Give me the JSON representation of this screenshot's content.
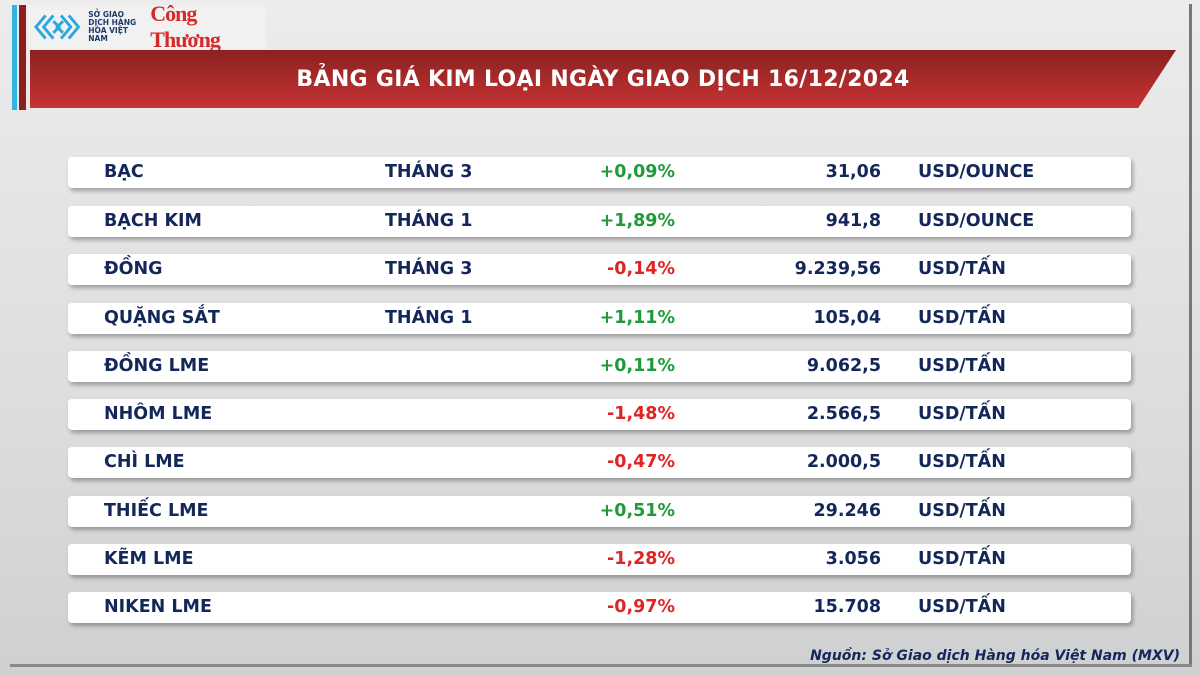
{
  "logo": {
    "org_text": "SỞ GIAO DỊCH HÀNG HÓA VIỆT NAM",
    "brand": "Công Thương"
  },
  "title": "BẢNG GIÁ KIM LOẠI NGÀY GIAO DỊCH 16/12/2024",
  "colors": {
    "up": "#1f9a3a",
    "down": "#e02323",
    "banner": "#c63333",
    "text": "#14275a"
  },
  "rows": [
    {
      "name": "BẠC",
      "month": "THÁNG 3",
      "change": "+0,09%",
      "price": "31,06",
      "unit": "USD/OUNCE",
      "dir": "up"
    },
    {
      "name": "BẠCH KIM",
      "month": "THÁNG 1",
      "change": "+1,89%",
      "price": "941,8",
      "unit": "USD/OUNCE",
      "dir": "up"
    },
    {
      "name": "ĐỒNG",
      "month": "THÁNG 3",
      "change": "-0,14%",
      "price": "9.239,56",
      "unit": "USD/TẤN",
      "dir": "down"
    },
    {
      "name": "QUẶNG SẮT",
      "month": "THÁNG 1",
      "change": "+1,11%",
      "price": "105,04",
      "unit": "USD/TẤN",
      "dir": "up"
    },
    {
      "name": "ĐỒNG LME",
      "month": "",
      "change": "+0,11%",
      "price": "9.062,5",
      "unit": "USD/TẤN",
      "dir": "up"
    },
    {
      "name": "NHÔM LME",
      "month": "",
      "change": "-1,48%",
      "price": "2.566,5",
      "unit": "USD/TẤN",
      "dir": "down"
    },
    {
      "name": "CHÌ LME",
      "month": "",
      "change": "-0,47%",
      "price": "2.000,5",
      "unit": "USD/TẤN",
      "dir": "down"
    },
    {
      "name": "THIẾC LME",
      "month": "",
      "change": "+0,51%",
      "price": "29.246",
      "unit": "USD/TẤN",
      "dir": "up"
    },
    {
      "name": "KẼM LME",
      "month": "",
      "change": "-1,28%",
      "price": "3.056",
      "unit": "USD/TẤN",
      "dir": "down"
    },
    {
      "name": "NIKEN LME",
      "month": "",
      "change": "-0,97%",
      "price": "15.708",
      "unit": "USD/TẤN",
      "dir": "down"
    }
  ],
  "source": "Nguồn: Sở Giao dịch Hàng hóa Việt Nam (MXV)"
}
